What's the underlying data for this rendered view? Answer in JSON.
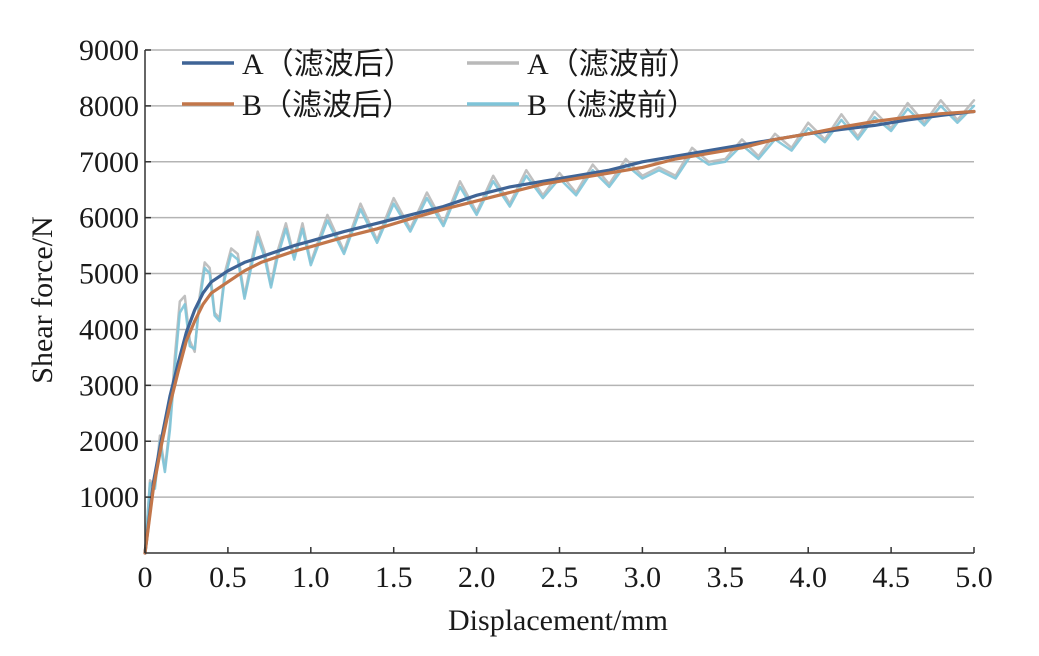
{
  "chart_data": {
    "type": "line",
    "xlabel": "Displacement/mm",
    "ylabel": "Shear force/N",
    "xlim": [
      0,
      5
    ],
    "ylim": [
      0,
      9000
    ],
    "xticks": [
      0,
      0.5,
      1.0,
      1.5,
      2.0,
      2.5,
      3.0,
      3.5,
      4.0,
      4.5,
      5.0
    ],
    "xtick_labels": [
      "0",
      "0.5",
      "1.0",
      "1.5",
      "2.0",
      "2.5",
      "3.0",
      "3.5",
      "4.0",
      "4.5",
      "5.0"
    ],
    "yticks": [
      1000,
      2000,
      3000,
      4000,
      5000,
      6000,
      7000,
      8000,
      9000
    ],
    "ytick_labels": [
      "1000",
      "2000",
      "3000",
      "4000",
      "5000",
      "6000",
      "7000",
      "8000",
      "9000"
    ],
    "grid": "horizontal",
    "legend_position": "top-left",
    "series": [
      {
        "name": "A（滤波后）",
        "color": "#3f6496",
        "style": "smooth",
        "x": [
          0,
          0.05,
          0.1,
          0.15,
          0.2,
          0.25,
          0.3,
          0.35,
          0.4,
          0.5,
          0.6,
          0.7,
          0.8,
          0.9,
          1.0,
          1.2,
          1.4,
          1.6,
          1.8,
          2.0,
          2.2,
          2.4,
          2.6,
          2.8,
          3.0,
          3.2,
          3.4,
          3.6,
          3.8,
          4.0,
          4.2,
          4.4,
          4.6,
          4.8,
          5.0
        ],
        "y": [
          0,
          1250,
          2050,
          2800,
          3400,
          3950,
          4350,
          4650,
          4850,
          5050,
          5200,
          5300,
          5400,
          5500,
          5580,
          5750,
          5900,
          6050,
          6200,
          6400,
          6550,
          6650,
          6750,
          6850,
          7000,
          7100,
          7200,
          7300,
          7400,
          7500,
          7580,
          7650,
          7750,
          7830,
          7900
        ]
      },
      {
        "name": "B（滤波后）",
        "color": "#c2764a",
        "style": "smooth",
        "x": [
          0,
          0.05,
          0.1,
          0.15,
          0.2,
          0.25,
          0.3,
          0.35,
          0.4,
          0.5,
          0.6,
          0.7,
          0.8,
          0.9,
          1.0,
          1.2,
          1.4,
          1.6,
          1.8,
          2.0,
          2.2,
          2.4,
          2.6,
          2.8,
          3.0,
          3.2,
          3.4,
          3.6,
          3.8,
          4.0,
          4.2,
          4.4,
          4.6,
          4.8,
          5.0
        ],
        "y": [
          0,
          1150,
          1950,
          2650,
          3250,
          3800,
          4150,
          4450,
          4650,
          4850,
          5050,
          5200,
          5300,
          5400,
          5480,
          5650,
          5800,
          5980,
          6150,
          6300,
          6450,
          6600,
          6700,
          6800,
          6900,
          7050,
          7150,
          7250,
          7400,
          7500,
          7620,
          7720,
          7800,
          7860,
          7900
        ]
      },
      {
        "name": "A（滤波前）",
        "color": "#b9b9b9",
        "style": "raw",
        "x": [
          0,
          0.03,
          0.06,
          0.09,
          0.12,
          0.15,
          0.18,
          0.21,
          0.24,
          0.27,
          0.3,
          0.33,
          0.36,
          0.39,
          0.42,
          0.45,
          0.48,
          0.52,
          0.56,
          0.6,
          0.64,
          0.68,
          0.72,
          0.76,
          0.8,
          0.85,
          0.9,
          0.95,
          1.0,
          1.1,
          1.2,
          1.3,
          1.4,
          1.5,
          1.6,
          1.7,
          1.8,
          1.9,
          2.0,
          2.1,
          2.2,
          2.3,
          2.4,
          2.5,
          2.6,
          2.7,
          2.8,
          2.9,
          3.0,
          3.1,
          3.2,
          3.3,
          3.4,
          3.5,
          3.6,
          3.7,
          3.8,
          3.9,
          4.0,
          4.1,
          4.2,
          4.3,
          4.4,
          4.5,
          4.6,
          4.7,
          4.8,
          4.9,
          5.0
        ],
        "y": [
          0,
          1300,
          1200,
          2100,
          1500,
          2300,
          3500,
          4500,
          4600,
          3800,
          3600,
          4600,
          5200,
          5100,
          4300,
          4200,
          5000,
          5450,
          5350,
          4600,
          5200,
          5750,
          5400,
          4800,
          5400,
          5900,
          5300,
          5900,
          5200,
          6050,
          5400,
          6250,
          5600,
          6350,
          5800,
          6450,
          5900,
          6650,
          6100,
          6750,
          6250,
          6850,
          6400,
          6800,
          6450,
          6950,
          6600,
          7050,
          6750,
          6900,
          6750,
          7250,
          7000,
          7050,
          7400,
          7100,
          7500,
          7250,
          7700,
          7400,
          7850,
          7450,
          7900,
          7600,
          8050,
          7700,
          8100,
          7750,
          8100
        ]
      },
      {
        "name": "B（滤波前）",
        "color": "#7ec4d8",
        "style": "raw",
        "x": [
          0,
          0.03,
          0.06,
          0.09,
          0.12,
          0.15,
          0.18,
          0.21,
          0.24,
          0.27,
          0.3,
          0.33,
          0.36,
          0.39,
          0.42,
          0.45,
          0.48,
          0.52,
          0.56,
          0.6,
          0.64,
          0.68,
          0.72,
          0.76,
          0.8,
          0.85,
          0.9,
          0.95,
          1.0,
          1.1,
          1.2,
          1.3,
          1.4,
          1.5,
          1.6,
          1.7,
          1.8,
          1.9,
          2.0,
          2.1,
          2.2,
          2.3,
          2.4,
          2.5,
          2.6,
          2.7,
          2.8,
          2.9,
          3.0,
          3.1,
          3.2,
          3.3,
          3.4,
          3.5,
          3.6,
          3.7,
          3.8,
          3.9,
          4.0,
          4.1,
          4.2,
          4.3,
          4.4,
          4.5,
          4.6,
          4.7,
          4.8,
          4.9,
          5.0
        ],
        "y": [
          0,
          1250,
          1150,
          2000,
          1450,
          2200,
          3300,
          4300,
          4450,
          3700,
          3650,
          4500,
          5100,
          5000,
          4250,
          4150,
          4900,
          5350,
          5250,
          4550,
          5100,
          5650,
          5300,
          4750,
          5300,
          5800,
          5250,
          5800,
          5150,
          5950,
          5350,
          6150,
          5550,
          6250,
          5750,
          6350,
          5850,
          6550,
          6050,
          6650,
          6200,
          6750,
          6350,
          6700,
          6400,
          6850,
          6550,
          6950,
          6700,
          6850,
          6700,
          7150,
          6950,
          7000,
          7300,
          7050,
          7400,
          7200,
          7600,
          7350,
          7750,
          7400,
          7800,
          7550,
          7950,
          7650,
          8000,
          7700,
          8000
        ]
      }
    ]
  }
}
